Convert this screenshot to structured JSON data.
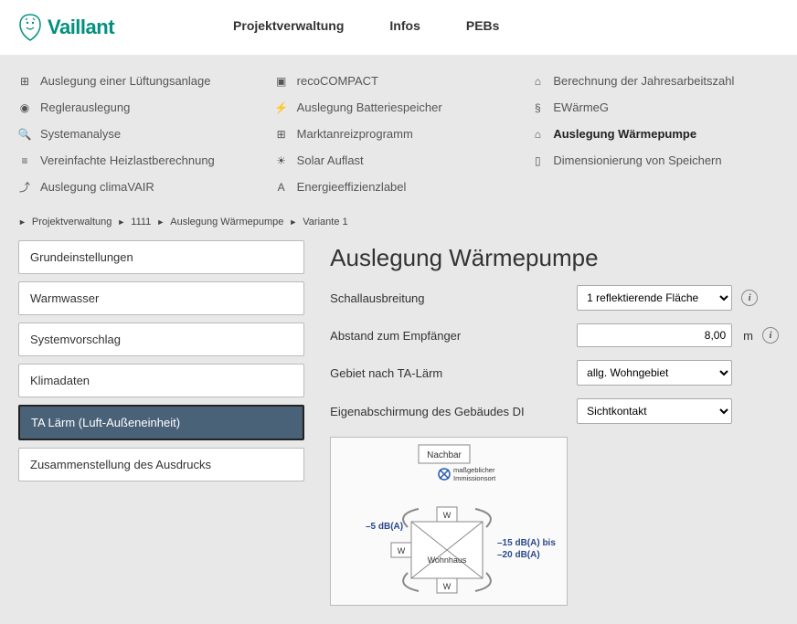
{
  "brand": "Vaillant",
  "topnav": {
    "project": "Projektverwaltung",
    "infos": "Infos",
    "pebs": "PEBs"
  },
  "mega": {
    "col1": [
      {
        "icon": "⊞",
        "label": "Auslegung einer Lüftungsanlage"
      },
      {
        "icon": "◉",
        "label": "Reglerauslegung"
      },
      {
        "icon": "🔍",
        "label": "Systemanalyse"
      },
      {
        "icon": "≡",
        "label": "Vereinfachte Heizlastberechnung"
      },
      {
        "icon": "⤴",
        "label": "Auslegung climaVAIR"
      }
    ],
    "col2": [
      {
        "icon": "▣",
        "label": "recoCOMPACT"
      },
      {
        "icon": "⚡",
        "label": "Auslegung Batteriespeicher"
      },
      {
        "icon": "⊞",
        "label": "Marktanreizprogramm"
      },
      {
        "icon": "☀",
        "label": "Solar Auflast"
      },
      {
        "icon": "A",
        "label": "Energieeffizienzlabel"
      }
    ],
    "col3": [
      {
        "icon": "⌂",
        "label": "Berechnung der Jahresarbeitszahl"
      },
      {
        "icon": "§",
        "label": "EWärmeG"
      },
      {
        "icon": "⌂",
        "label": "Auslegung Wärmepumpe",
        "bold": true
      },
      {
        "icon": "▯",
        "label": "Dimensionierung von Speichern"
      }
    ]
  },
  "breadcrumb": [
    "Projektverwaltung",
    "1111",
    "Auslegung Wärmepumpe",
    "Variante 1"
  ],
  "sidebar": [
    {
      "label": "Grundeinstellungen"
    },
    {
      "label": "Warmwasser"
    },
    {
      "label": "Systemvorschlag"
    },
    {
      "label": "Klimadaten"
    },
    {
      "label": "TA Lärm (Luft-Außeneinheit)",
      "active": true
    },
    {
      "label": "Zusammenstellung des Ausdrucks"
    }
  ],
  "main": {
    "title": "Auslegung Wärmepumpe",
    "rows": {
      "schall": {
        "label": "Schallausbreitung",
        "value": "1 reflektierende Fläche"
      },
      "abstand": {
        "label": "Abstand zum Empfänger",
        "value": "8,00",
        "unit": "m"
      },
      "gebiet": {
        "label": "Gebiet nach TA-Lärm",
        "value": "allg. Wohngebiet"
      },
      "eigen": {
        "label": "Eigenabschirmung des Gebäudes DI",
        "value": "Sichtkontakt"
      }
    }
  },
  "diagram": {
    "background": "#fafafa",
    "border_color": "#888",
    "text_color": "#2a4a8a",
    "nachbar_label": "Nachbar",
    "immission_label": "maßgeblicher\nImmissionsort",
    "wohnhaus_label": "Wohnhaus",
    "w_label": "W",
    "db_left": "–5 dB(A)",
    "db_right_line1": "–15 dB(A) bis",
    "db_right_line2": "–20 dB(A)",
    "marker_color": "#2a5cb0"
  }
}
